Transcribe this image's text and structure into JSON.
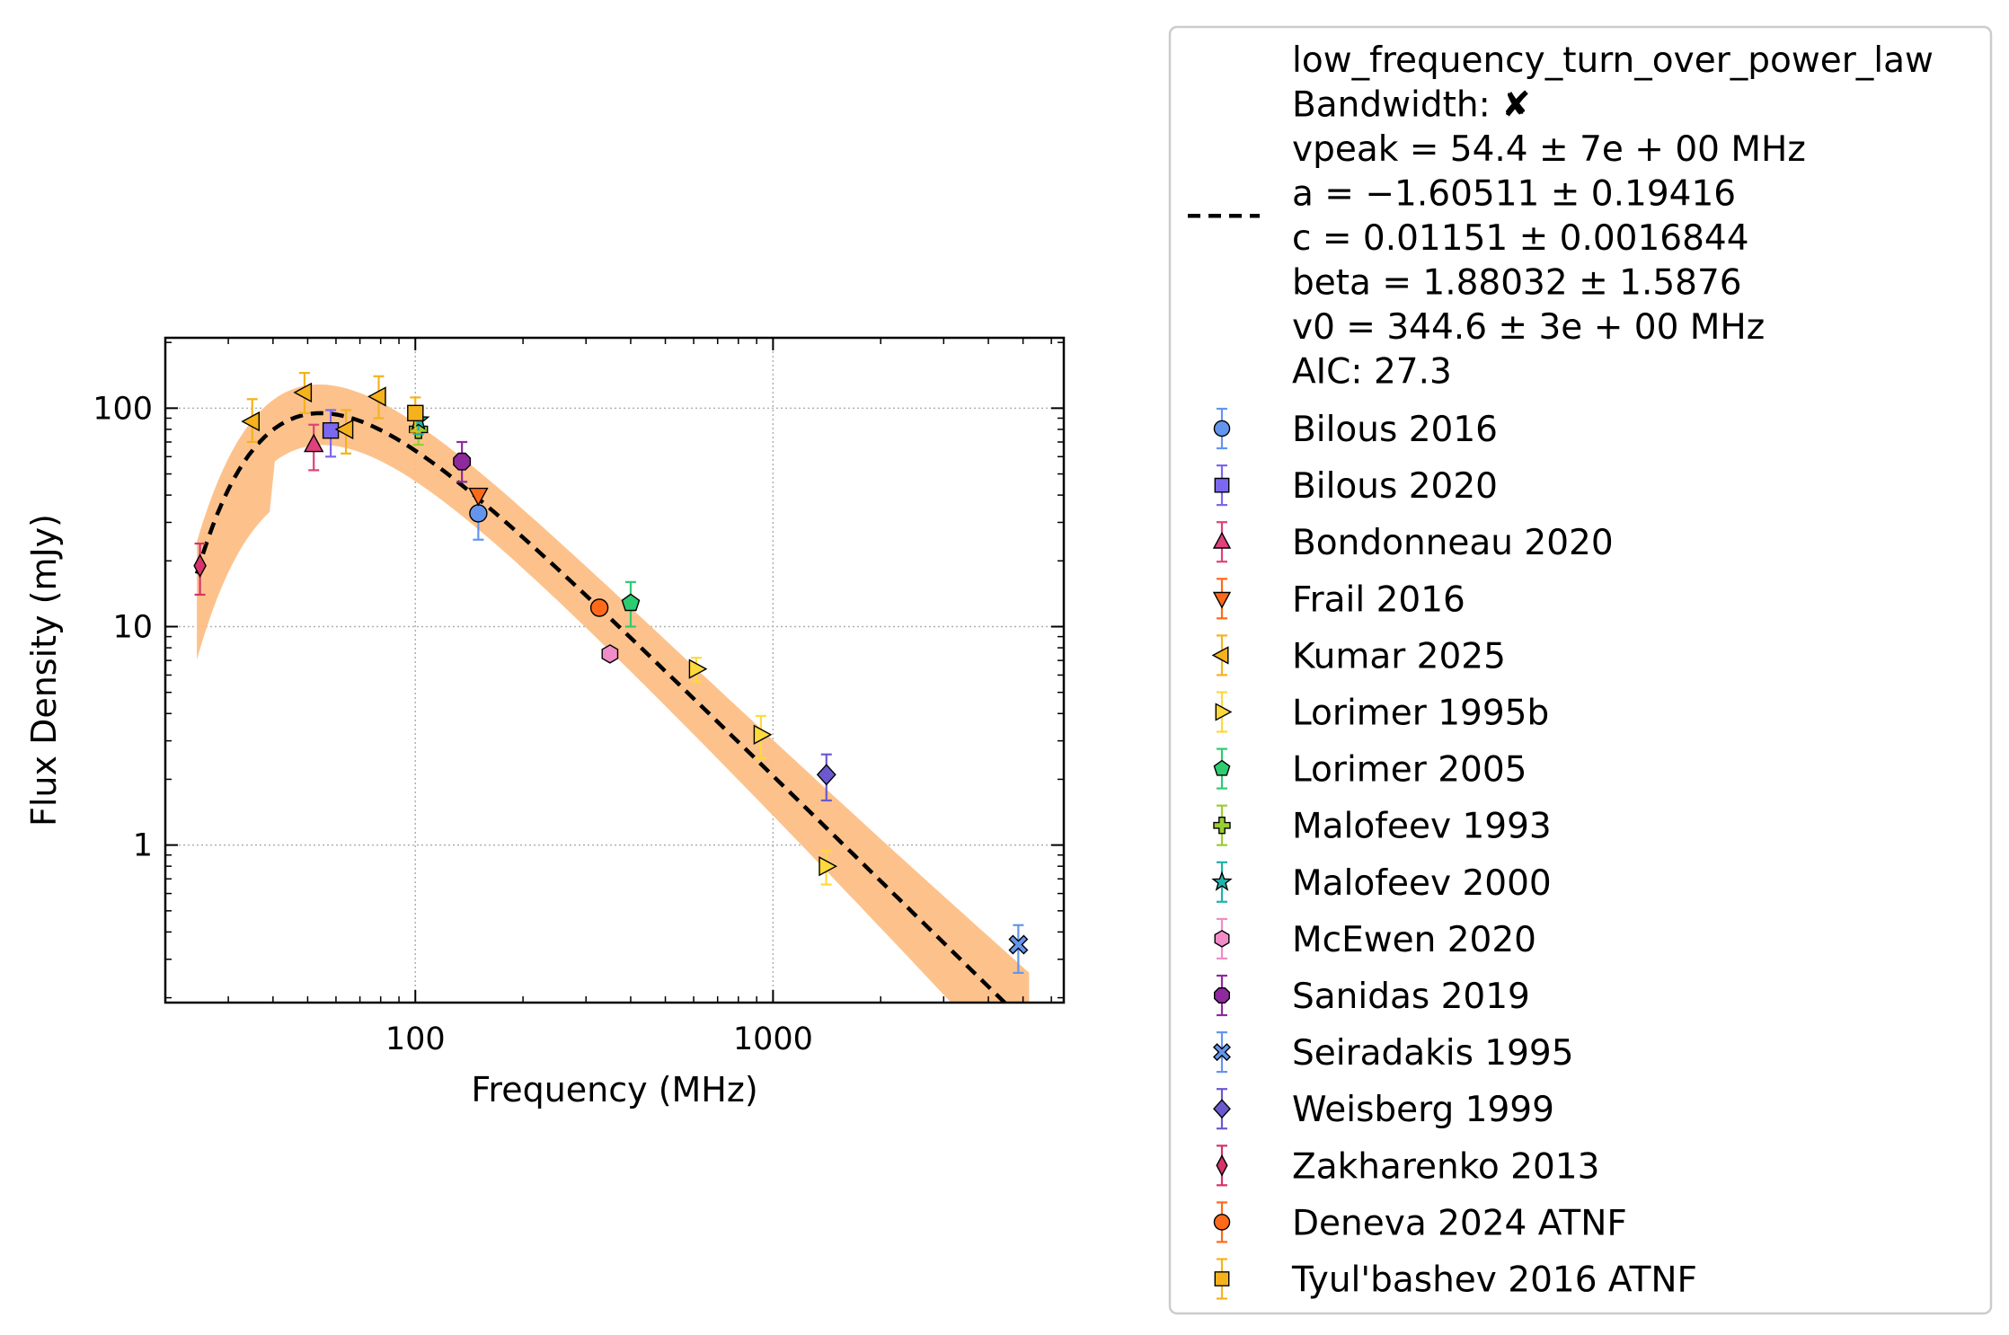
{
  "chart_data": {
    "type": "scatter",
    "xlabel": "Frequency (MHz)",
    "ylabel": "Flux Density (mJy)",
    "xscale": "log",
    "yscale": "log",
    "xlim": [
      20,
      6500
    ],
    "ylim": [
      0.19,
      210
    ],
    "x_ticks": [
      {
        "value": 100,
        "label": "100"
      },
      {
        "value": 1000,
        "label": "1000"
      }
    ],
    "y_ticks": [
      {
        "value": 1,
        "label": "1"
      },
      {
        "value": 10,
        "label": "10"
      },
      {
        "value": 100,
        "label": "100"
      }
    ],
    "grid": true,
    "legend_position": "outside-right",
    "fit": {
      "model": "low_frequency_turn_over_power_law",
      "params": {
        "vpeak": 54.4,
        "a": -1.60511,
        "c": 0.01151,
        "beta": 1.88032,
        "v0": 344.6
      },
      "x_range": [
        24.5,
        5200
      ],
      "band_color": "#fdbf86",
      "line_color": "#000000",
      "legend_lines": [
        "low_frequency_turn_over_power_law",
        "Bandwidth: ✘",
        "vpeak = 54.4 ± 7e + 00 MHz",
        "a = −1.60511 ± 0.19416",
        "c = 0.01151 ± 0.0016844",
        "beta = 1.88032 ± 1.5876",
        "v0 = 344.6 ± 3e + 00 MHz",
        "AIC: 27.3"
      ]
    },
    "series": [
      {
        "name": "Bilous 2016",
        "marker": "circle",
        "color": "#6495ed",
        "points": [
          {
            "x": 150,
            "y": 33,
            "ylo": 25,
            "yhi": 41
          }
        ]
      },
      {
        "name": "Bilous 2020",
        "marker": "square",
        "color": "#7b68ee",
        "points": [
          {
            "x": 58,
            "y": 79,
            "ylo": 60,
            "yhi": 98
          }
        ]
      },
      {
        "name": "Bondonneau 2020",
        "marker": "triangle-up",
        "color": "#e0407b",
        "points": [
          {
            "x": 52,
            "y": 68,
            "ylo": 52,
            "yhi": 84
          }
        ]
      },
      {
        "name": "Frail 2016",
        "marker": "triangle-down",
        "color": "#ff6a1a",
        "points": [
          {
            "x": 150,
            "y": 40,
            "ylo": 40,
            "yhi": 40
          }
        ]
      },
      {
        "name": "Kumar 2025",
        "marker": "triangle-left",
        "color": "#f5b21d",
        "points": [
          {
            "x": 35,
            "y": 87,
            "ylo": 70,
            "yhi": 110
          },
          {
            "x": 49,
            "y": 118,
            "ylo": 95,
            "yhi": 145
          },
          {
            "x": 64,
            "y": 80,
            "ylo": 62,
            "yhi": 98
          },
          {
            "x": 79,
            "y": 113,
            "ylo": 90,
            "yhi": 140
          }
        ]
      },
      {
        "name": "Lorimer 1995b",
        "marker": "triangle-right",
        "color": "#ffd93b",
        "points": [
          {
            "x": 610,
            "y": 6.4,
            "ylo": 5.6,
            "yhi": 7.2
          },
          {
            "x": 925,
            "y": 3.2,
            "ylo": 2.5,
            "yhi": 3.9
          },
          {
            "x": 1408,
            "y": 0.8,
            "ylo": 0.66,
            "yhi": 0.94
          }
        ]
      },
      {
        "name": "Lorimer 2005",
        "marker": "pentagon",
        "color": "#2ecc71",
        "points": [
          {
            "x": 400,
            "y": 12.8,
            "ylo": 10,
            "yhi": 16
          }
        ]
      },
      {
        "name": "Malofeev 1993",
        "marker": "plus",
        "color": "#9acd32",
        "points": [
          {
            "x": 102,
            "y": 80,
            "ylo": 68,
            "yhi": 93
          }
        ]
      },
      {
        "name": "Malofeev 2000",
        "marker": "star",
        "color": "#20b2aa",
        "points": [
          {
            "x": 102,
            "y": 88,
            "ylo": 76,
            "yhi": 100
          }
        ]
      },
      {
        "name": "McEwen 2020",
        "marker": "hexagon",
        "color": "#f08cc8",
        "points": [
          {
            "x": 350,
            "y": 7.5,
            "ylo": 7.5,
            "yhi": 7.5
          }
        ]
      },
      {
        "name": "Sanidas 2019",
        "marker": "octagon",
        "color": "#8e2a9e",
        "points": [
          {
            "x": 135,
            "y": 57,
            "ylo": 46,
            "yhi": 70
          }
        ]
      },
      {
        "name": "Seiradakis 1995",
        "marker": "x",
        "color": "#6495ed",
        "points": [
          {
            "x": 4850,
            "y": 0.35,
            "ylo": 0.26,
            "yhi": 0.43
          }
        ]
      },
      {
        "name": "Weisberg 1999",
        "marker": "diamond",
        "color": "#6a5acd",
        "points": [
          {
            "x": 1410,
            "y": 2.1,
            "ylo": 1.6,
            "yhi": 2.6
          }
        ]
      },
      {
        "name": "Zakharenko 2013",
        "marker": "thin-diamond",
        "color": "#d6336c",
        "points": [
          {
            "x": 25,
            "y": 19,
            "ylo": 14,
            "yhi": 24
          }
        ]
      },
      {
        "name": "Deneva 2024 ATNF",
        "marker": "circle",
        "color": "#ff6a1a",
        "points": [
          {
            "x": 327,
            "y": 12.2,
            "ylo": 12.2,
            "yhi": 12.2
          }
        ]
      },
      {
        "name": "Tyul'bashev 2016 ATNF",
        "marker": "square",
        "color": "#f5b21d",
        "points": [
          {
            "x": 100,
            "y": 95,
            "ylo": 78,
            "yhi": 112
          }
        ]
      }
    ]
  }
}
